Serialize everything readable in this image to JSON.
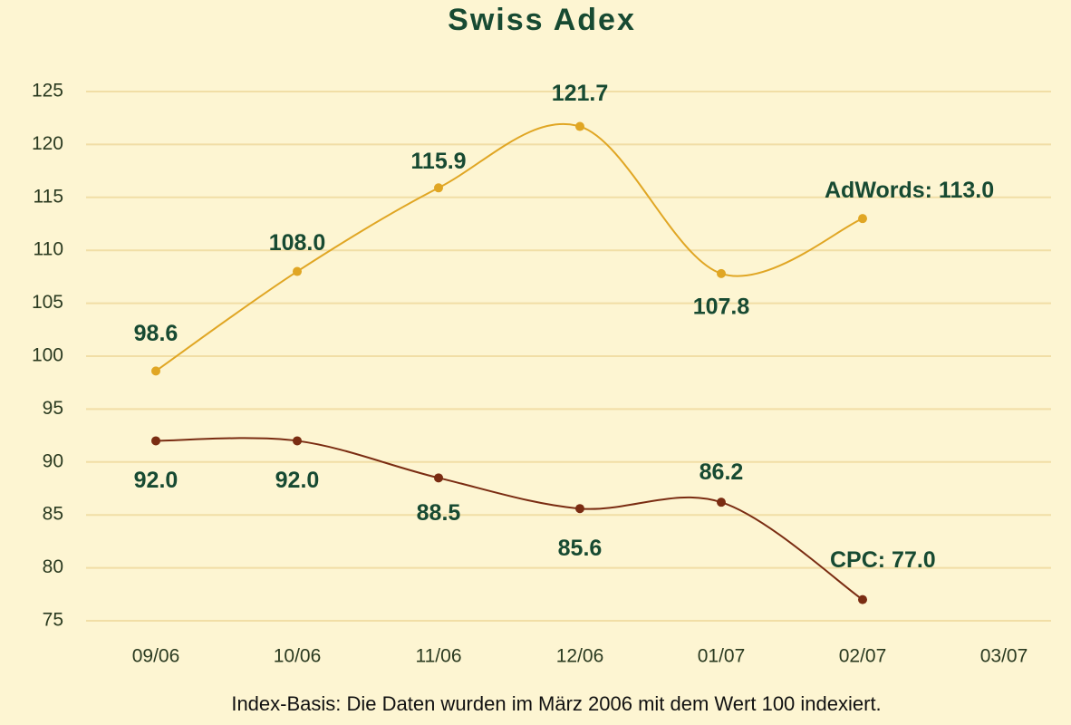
{
  "chart_data": {
    "type": "line",
    "title": "Swiss Adex",
    "footnote": "Index-Basis: Die Daten wurden im März 2006 mit dem Wert 100 indexiert.",
    "categories": [
      "09/06",
      "10/06",
      "11/06",
      "12/06",
      "01/07",
      "02/07",
      "03/07"
    ],
    "series": [
      {
        "color": "#e0a624",
        "values": [
          98.6,
          108.0,
          115.9,
          121.7,
          107.8,
          113.0,
          null
        ],
        "value_labels": [
          "98.6",
          "108.0",
          "115.9",
          "121.7",
          "107.8",
          "AdWords: 113.0",
          null
        ]
      },
      {
        "color": "#7a2c12",
        "values": [
          92.0,
          92.0,
          88.5,
          85.6,
          86.2,
          77.0,
          null
        ],
        "value_labels": [
          "92.0",
          "92.0",
          "88.5",
          "85.6",
          "86.2",
          "CPC: 77.0",
          null
        ]
      }
    ],
    "ylim": [
      75,
      125
    ],
    "yticks": [
      75,
      80,
      85,
      90,
      95,
      100,
      105,
      110,
      115,
      120,
      125
    ],
    "grid": true
  }
}
